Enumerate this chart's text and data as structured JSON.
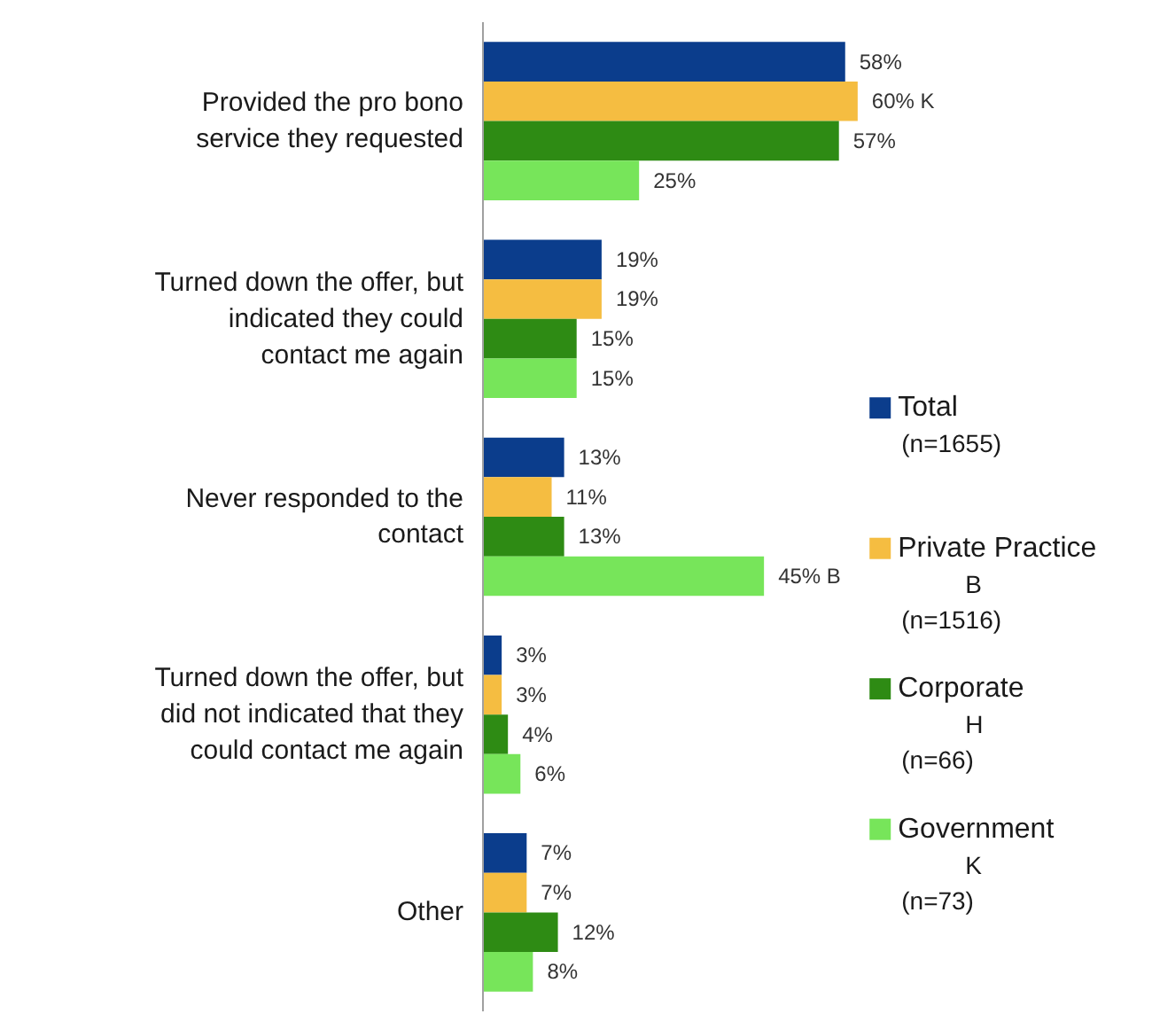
{
  "chart_data": {
    "type": "bar",
    "orientation": "horizontal",
    "categories": [
      "Provided the pro bono service they requested",
      "Turned down the offer, but indicated they could contact me again",
      "Never responded to the contact",
      "Turned down the offer, but did not indicated that they could contact me again",
      "Other"
    ],
    "series": [
      {
        "name": "Total\n(n=1655)",
        "color": "#0b3d8c",
        "values": [
          58,
          19,
          13,
          3,
          7
        ],
        "value_labels": [
          "58%",
          "19%",
          "13%",
          "3%",
          "7%"
        ]
      },
      {
        "name": "Private Practice\nB\n(n=1516)",
        "color": "#f5bd41",
        "values": [
          60,
          19,
          11,
          3,
          7
        ],
        "value_labels": [
          "60%   K",
          "19%",
          "11%",
          "3%",
          "7%"
        ]
      },
      {
        "name": "Corporate\nH\n(n=66)",
        "color": "#2e8b14",
        "values": [
          57,
          15,
          13,
          4,
          12
        ],
        "value_labels": [
          "57%",
          "15%",
          "13%",
          "4%",
          "12%"
        ]
      },
      {
        "name": "Government\nK\n(n=73)",
        "color": "#77e55a",
        "values": [
          25,
          15,
          45,
          6,
          8
        ],
        "value_labels": [
          "25%",
          "15%",
          "45%   B",
          "6%",
          "8%"
        ]
      }
    ],
    "legend": "right",
    "grid": false
  }
}
